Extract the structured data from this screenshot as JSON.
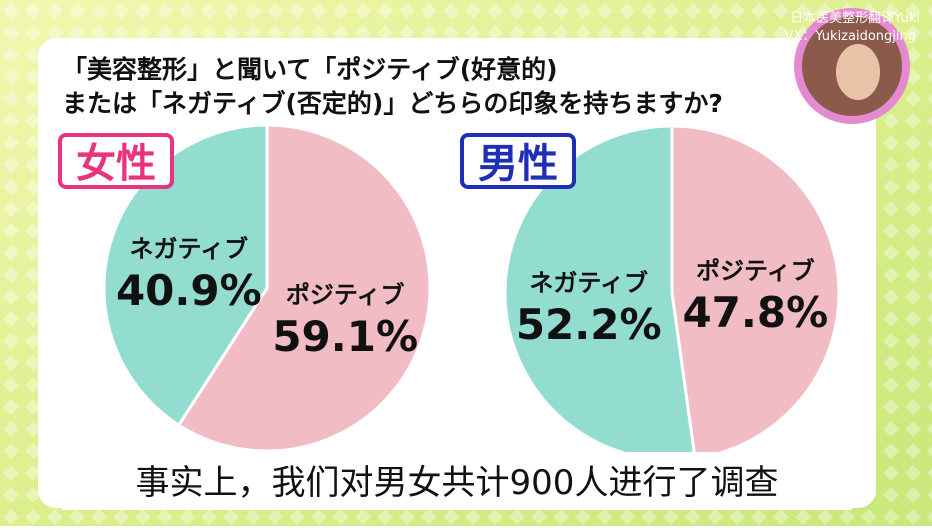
{
  "header": {
    "line1": "「美容整形」と聞いて「ポジティブ(好意的)",
    "line2": "または「ネガティブ(否定的)」どちらの印象を持ちますか?"
  },
  "watermark": {
    "line1": "日本医美整形翻译Yuki",
    "line2": "VX：Yukizaidongjing"
  },
  "subtitle": "事实上，我们对男女共计900人进行了调查",
  "chart_data": [
    {
      "type": "pie",
      "title": "女性",
      "title_color": "#e8347e",
      "categories": [
        "ポジティブ",
        "ネガティブ"
      ],
      "values": [
        59.1,
        40.9
      ],
      "value_labels": [
        "59.1%",
        "40.9%"
      ],
      "colors": [
        "#f2bcc4",
        "#93ddd0"
      ]
    },
    {
      "type": "pie",
      "title": "男性",
      "title_color": "#1f2fb5",
      "categories": [
        "ポジティブ",
        "ネガティブ"
      ],
      "values": [
        47.8,
        52.2
      ],
      "value_labels": [
        "47.8%",
        "52.2%"
      ],
      "colors": [
        "#f2bcc4",
        "#93ddd0"
      ]
    }
  ]
}
